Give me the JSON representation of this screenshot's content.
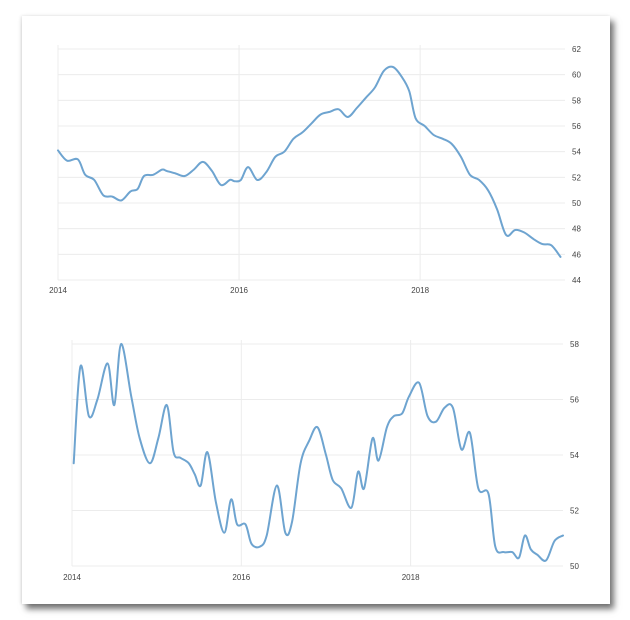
{
  "chart_data": [
    {
      "type": "line",
      "title": "",
      "xlabel": "",
      "ylabel": "",
      "xticks": [
        "2014",
        "2016",
        "2018"
      ],
      "xtick_values": [
        2014,
        2016,
        2018
      ],
      "xlim": [
        2014,
        2019.6
      ],
      "yticks": [
        "44",
        "46",
        "48",
        "50",
        "52",
        "54",
        "56",
        "58",
        "60",
        "62"
      ],
      "ylim": [
        44,
        62
      ],
      "grid": true,
      "y_axis_side": "right",
      "color": "#6ea4d0",
      "series": [
        {
          "x": [
            2014.0,
            2014.1,
            2014.22,
            2014.3,
            2014.4,
            2014.5,
            2014.6,
            2014.7,
            2014.8,
            2014.88,
            2014.95,
            2015.05,
            2015.15,
            2015.2,
            2015.3,
            2015.4,
            2015.5,
            2015.6,
            2015.7,
            2015.8,
            2015.9,
            2015.95,
            2016.02,
            2016.1,
            2016.2,
            2016.3,
            2016.4,
            2016.5,
            2016.6,
            2016.7,
            2016.8,
            2016.9,
            2017.0,
            2017.1,
            2017.2,
            2017.3,
            2017.4,
            2017.5,
            2017.6,
            2017.7,
            2017.8,
            2017.88,
            2017.95,
            2018.05,
            2018.15,
            2018.25,
            2018.35,
            2018.45,
            2018.55,
            2018.65,
            2018.75,
            2018.85,
            2018.95,
            2019.05,
            2019.15,
            2019.25,
            2019.35,
            2019.45,
            2019.55
          ],
          "values": [
            54.1,
            53.3,
            53.4,
            52.2,
            51.8,
            50.6,
            50.5,
            50.2,
            50.9,
            51.1,
            52.1,
            52.2,
            52.6,
            52.5,
            52.3,
            52.1,
            52.6,
            53.2,
            52.5,
            51.4,
            51.8,
            51.7,
            51.8,
            52.8,
            51.8,
            52.4,
            53.6,
            54.0,
            55.0,
            55.5,
            56.2,
            56.9,
            57.1,
            57.3,
            56.7,
            57.4,
            58.2,
            59.0,
            60.3,
            60.6,
            59.8,
            58.7,
            56.6,
            56.0,
            55.3,
            55.0,
            54.6,
            53.6,
            52.2,
            51.8,
            51.0,
            49.5,
            47.5,
            47.9,
            47.7,
            47.2,
            46.8,
            46.7,
            45.8
          ]
        }
      ]
    },
    {
      "type": "line",
      "title": "",
      "xlabel": "",
      "ylabel": "",
      "xticks": [
        "2014",
        "2016",
        "2018"
      ],
      "xtick_values": [
        2014,
        2016,
        2018
      ],
      "xlim": [
        2014,
        2019.8
      ],
      "yticks": [
        "50",
        "52",
        "54",
        "56",
        "58"
      ],
      "ylim": [
        50,
        58
      ],
      "grid": true,
      "y_axis_side": "right",
      "color": "#6ea4d0",
      "series": [
        {
          "x": [
            2014.02,
            2014.1,
            2014.2,
            2014.3,
            2014.42,
            2014.5,
            2014.58,
            2014.7,
            2014.8,
            2014.92,
            2015.02,
            2015.12,
            2015.2,
            2015.28,
            2015.38,
            2015.45,
            2015.52,
            2015.6,
            2015.7,
            2015.8,
            2015.88,
            2015.95,
            2016.05,
            2016.12,
            2016.22,
            2016.3,
            2016.42,
            2016.52,
            2016.6,
            2016.7,
            2016.8,
            2016.9,
            2017.0,
            2017.08,
            2017.18,
            2017.3,
            2017.38,
            2017.45,
            2017.55,
            2017.62,
            2017.72,
            2017.8,
            2017.9,
            2017.98,
            2018.1,
            2018.2,
            2018.3,
            2018.4,
            2018.5,
            2018.6,
            2018.7,
            2018.8,
            2018.92,
            2019.0,
            2019.1,
            2019.2,
            2019.28,
            2019.35,
            2019.42,
            2019.5,
            2019.6,
            2019.7,
            2019.8
          ],
          "values": [
            53.7,
            57.2,
            55.4,
            56.0,
            57.3,
            55.8,
            58.0,
            56.1,
            54.6,
            53.7,
            54.6,
            55.8,
            54.1,
            53.9,
            53.7,
            53.3,
            52.9,
            54.1,
            52.3,
            51.2,
            52.4,
            51.5,
            51.5,
            50.8,
            50.7,
            51.1,
            52.9,
            51.2,
            51.6,
            53.7,
            54.5,
            55.0,
            54.0,
            53.1,
            52.8,
            52.1,
            53.4,
            52.8,
            54.6,
            53.8,
            55.0,
            55.4,
            55.5,
            56.1,
            56.6,
            55.4,
            55.2,
            55.7,
            55.7,
            54.2,
            54.8,
            52.8,
            52.6,
            50.7,
            50.5,
            50.5,
            50.3,
            51.1,
            50.6,
            50.4,
            50.2,
            50.9,
            51.1
          ]
        }
      ]
    }
  ]
}
